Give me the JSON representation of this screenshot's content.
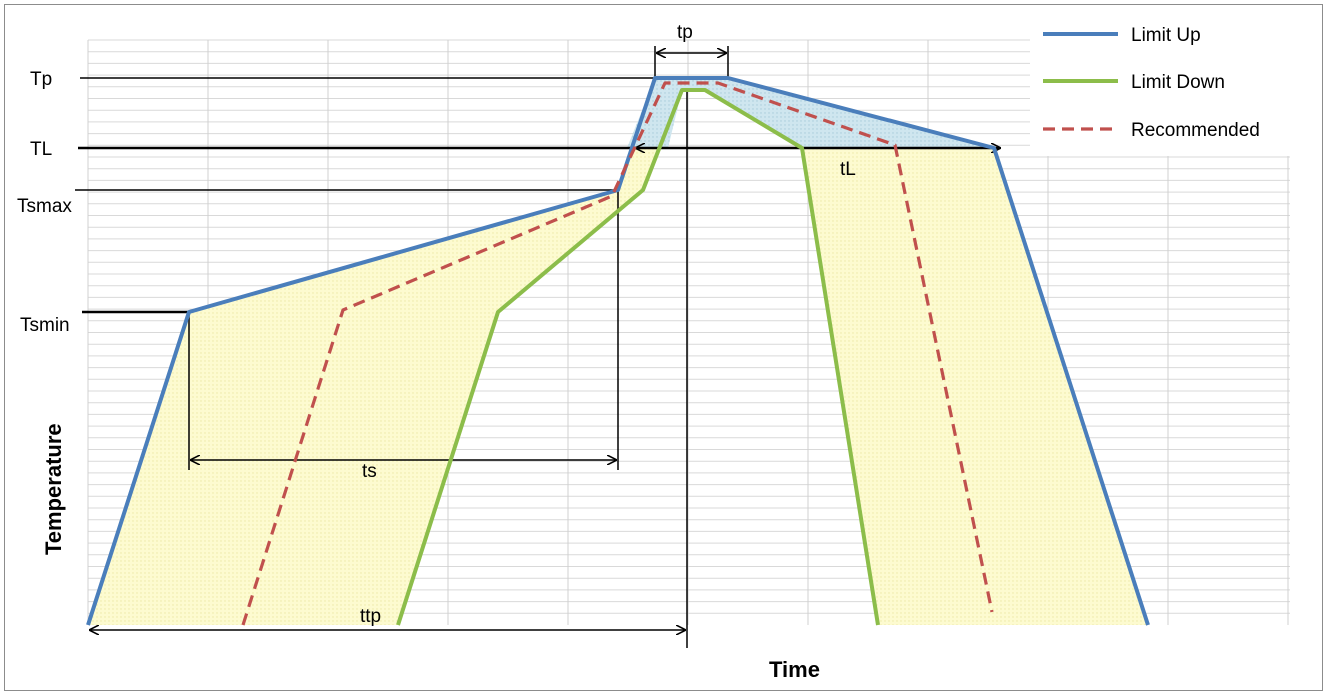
{
  "chart_data": {
    "type": "line",
    "title": "",
    "xlabel": "Time",
    "ylabel": "Temperature",
    "grid": true,
    "legend_position": "top-right",
    "temperature_levels": [
      "Tp",
      "TL",
      "Tsmax",
      "Tsmin"
    ],
    "interval_labels": {
      "peak_time": "tp",
      "liquidus_time": "tL",
      "soak_time": "ts",
      "time_to_peak": "ttp"
    },
    "series": [
      {
        "name": "Limit Up",
        "color": "#4a7ebb",
        "style": "solid",
        "points": [
          {
            "x": "start",
            "y": "ambient"
          },
          {
            "x": "ts start",
            "y": "Tsmin"
          },
          {
            "x": "ts end",
            "y": "Tsmax"
          },
          {
            "x": "tp start",
            "y": "Tp"
          },
          {
            "x": "tp end",
            "y": "Tp"
          },
          {
            "x": "tL end",
            "y": "TL"
          },
          {
            "x": "end",
            "y": "ambient"
          }
        ]
      },
      {
        "name": "Limit Down",
        "color": "#8cbd4a",
        "style": "solid",
        "points": []
      },
      {
        "name": "Recommended",
        "color": "#c0504d",
        "style": "dashed",
        "points": []
      }
    ]
  }
}
